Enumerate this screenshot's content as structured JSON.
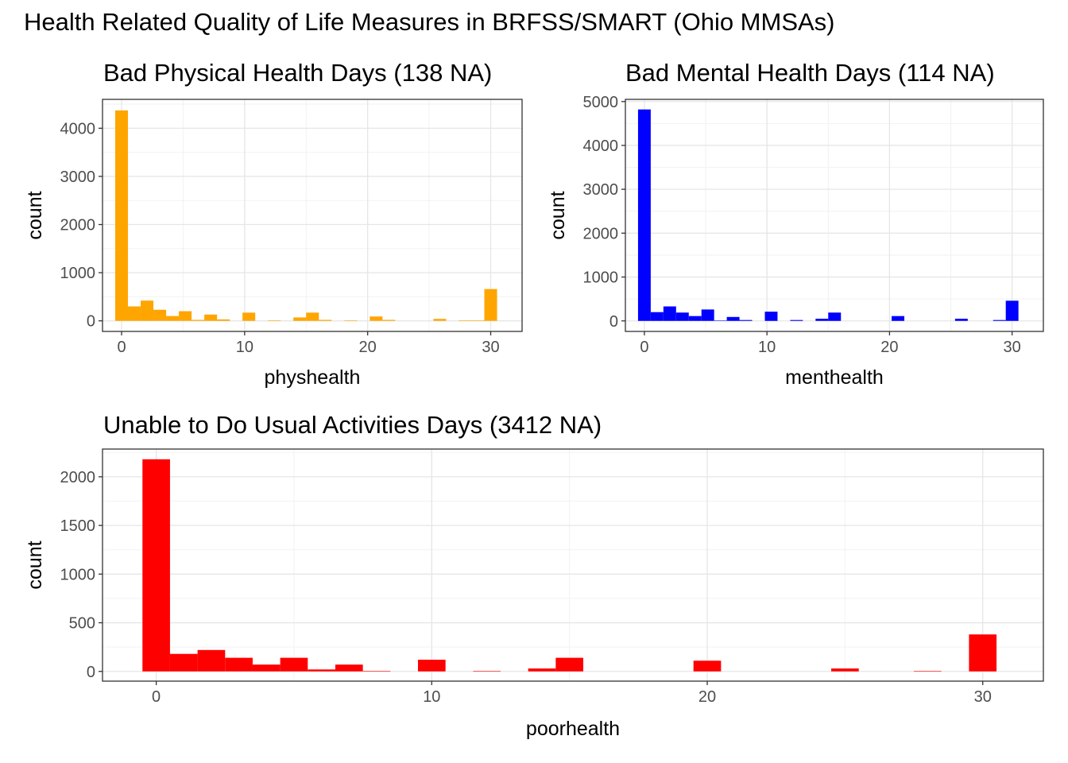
{
  "figure": {
    "title": "Health Related Quality of Life Measures in BRFSS/SMART (Ohio MMSAs)"
  },
  "chart_data": [
    {
      "type": "bar",
      "title": "Bad Physical Health Days (138 NA)",
      "xlabel": "physhealth",
      "ylabel": "count",
      "color": "#FFA500",
      "xlim": [
        -1.55,
        32.55
      ],
      "ylim": [
        -220,
        4600
      ],
      "xticks": [
        0,
        10,
        20,
        30
      ],
      "yticks": [
        0,
        1000,
        2000,
        3000,
        4000
      ],
      "bin_width": 1.0345,
      "x": [
        0,
        1.0345,
        2.069,
        3.1034,
        4.1379,
        5.1724,
        6.2069,
        7.2414,
        8.2759,
        9.3103,
        10.3448,
        11.3793,
        12.4138,
        13.4483,
        14.4828,
        15.5172,
        16.5517,
        17.5862,
        18.6207,
        19.6552,
        20.6897,
        21.7241,
        22.7586,
        23.7931,
        24.8276,
        25.8621,
        26.8966,
        27.931,
        28.9655,
        30
      ],
      "values": [
        4370,
        300,
        420,
        230,
        100,
        200,
        20,
        130,
        30,
        0,
        170,
        0,
        10,
        0,
        70,
        170,
        20,
        0,
        10,
        0,
        90,
        20,
        0,
        0,
        0,
        40,
        0,
        10,
        10,
        660
      ],
      "grid": true
    },
    {
      "type": "bar",
      "title": "Bad Mental Health Days (114 NA)",
      "xlabel": "menthealth",
      "ylabel": "count",
      "color": "#0000FF",
      "xlim": [
        -1.55,
        32.55
      ],
      "ylim": [
        -240,
        5050
      ],
      "xticks": [
        0,
        10,
        20,
        30
      ],
      "yticks": [
        0,
        1000,
        2000,
        3000,
        4000,
        5000
      ],
      "bin_width": 1.0345,
      "x": [
        0,
        1.0345,
        2.069,
        3.1034,
        4.1379,
        5.1724,
        6.2069,
        7.2414,
        8.2759,
        9.3103,
        10.3448,
        11.3793,
        12.4138,
        13.4483,
        14.4828,
        15.5172,
        16.5517,
        17.5862,
        18.6207,
        19.6552,
        20.6897,
        21.7241,
        22.7586,
        23.7931,
        24.8276,
        25.8621,
        26.8966,
        27.931,
        28.9655,
        30
      ],
      "values": [
        4820,
        200,
        330,
        190,
        110,
        260,
        10,
        90,
        20,
        0,
        210,
        0,
        20,
        0,
        50,
        190,
        0,
        0,
        0,
        0,
        110,
        0,
        0,
        0,
        0,
        50,
        0,
        0,
        20,
        460
      ],
      "grid": true
    },
    {
      "type": "bar",
      "title": "Unable to Do Usual Activities Days (3412 NA)",
      "xlabel": "poorhealth",
      "ylabel": "count",
      "color": "#FF0000",
      "xlim": [
        -1.95,
        32.2
      ],
      "ylim": [
        -100,
        2285
      ],
      "xticks": [
        0,
        10,
        20,
        30
      ],
      "yticks": [
        0,
        500,
        1000,
        1500,
        2000
      ],
      "bin_width": 1.0,
      "x": [
        0,
        1,
        2,
        3,
        4,
        5,
        6,
        7,
        8,
        9,
        10,
        11,
        12,
        13,
        14,
        15,
        16,
        17,
        18,
        19,
        20,
        21,
        22,
        23,
        24,
        25,
        26,
        27,
        28,
        29,
        30
      ],
      "values": [
        2180,
        180,
        220,
        140,
        70,
        140,
        20,
        70,
        5,
        0,
        120,
        0,
        5,
        0,
        30,
        140,
        0,
        0,
        0,
        0,
        110,
        0,
        0,
        0,
        0,
        30,
        0,
        0,
        5,
        0,
        380
      ],
      "grid": true
    }
  ]
}
